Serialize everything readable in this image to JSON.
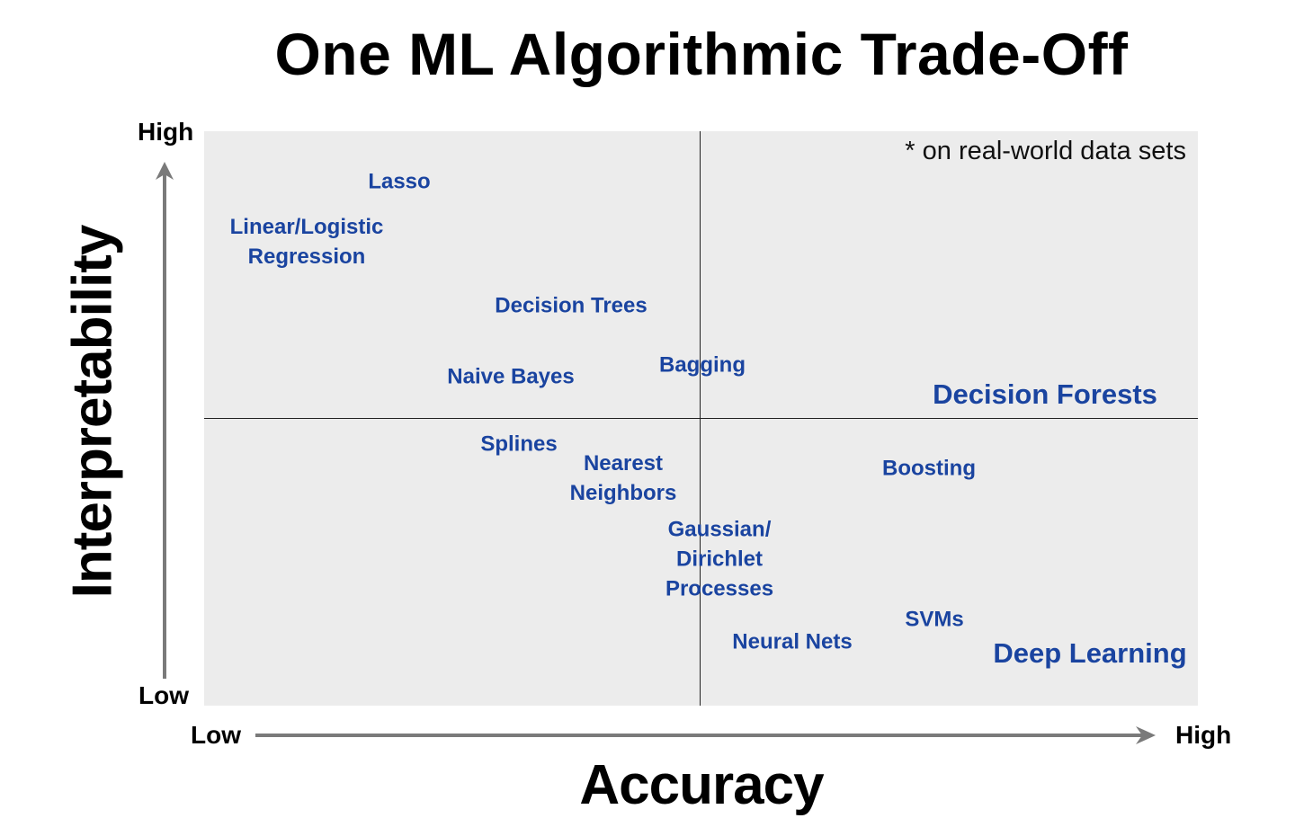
{
  "title": "One ML Algorithmic Trade-Off",
  "note": "* on real-world data sets",
  "axes": {
    "y_label": "Interpretability",
    "x_label": "Accuracy",
    "y_high": "High",
    "y_low": "Low",
    "x_low": "Low",
    "x_high": "High"
  },
  "colors": {
    "algorithm_text": "#1a44a0",
    "panel": "#ececec",
    "arrow": "#7a7a7a"
  },
  "algorithms": [
    {
      "key": "lasso",
      "lines": [
        "Lasso"
      ]
    },
    {
      "key": "linear-logistic-regression",
      "lines": [
        "Linear/Logistic",
        "Regression"
      ]
    },
    {
      "key": "decision-trees",
      "lines": [
        "Decision Trees"
      ]
    },
    {
      "key": "naive-bayes",
      "lines": [
        "Naive Bayes"
      ]
    },
    {
      "key": "bagging",
      "lines": [
        "Bagging"
      ]
    },
    {
      "key": "decision-forests",
      "lines": [
        "Decision Forests"
      ]
    },
    {
      "key": "splines",
      "lines": [
        "Splines"
      ]
    },
    {
      "key": "nearest-neighbors",
      "lines": [
        "Nearest",
        "Neighbors"
      ]
    },
    {
      "key": "boosting",
      "lines": [
        "Boosting"
      ]
    },
    {
      "key": "gaussian-dirichlet-processes",
      "lines": [
        "Gaussian/",
        "Dirichlet",
        "Processes"
      ]
    },
    {
      "key": "svms",
      "lines": [
        "SVMs"
      ]
    },
    {
      "key": "neural-nets",
      "lines": [
        "Neural Nets"
      ]
    },
    {
      "key": "deep-learning",
      "lines": [
        "Deep Learning"
      ]
    }
  ]
}
